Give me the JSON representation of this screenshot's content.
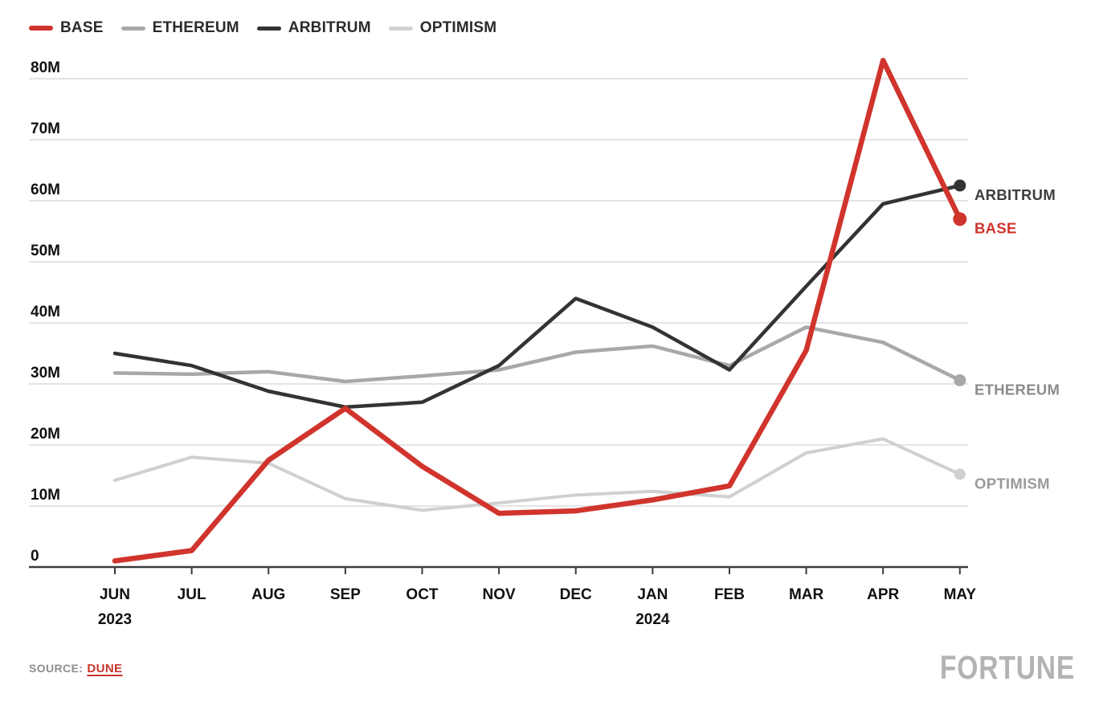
{
  "legend": {
    "items": [
      {
        "label": "BASE",
        "color": "#d0342c"
      },
      {
        "label": "ETHEREUM",
        "color": "#a8a8a8"
      },
      {
        "label": "ARBITRUM",
        "color": "#333333"
      },
      {
        "label": "OPTIMISM",
        "color": "#d2d2d2"
      }
    ]
  },
  "x_axis": {
    "months": [
      {
        "label": "JUN",
        "year": "2023"
      },
      {
        "label": "JUL"
      },
      {
        "label": "AUG"
      },
      {
        "label": "SEP"
      },
      {
        "label": "OCT"
      },
      {
        "label": "NOV"
      },
      {
        "label": "DEC"
      },
      {
        "label": "JAN",
        "year": "2024"
      },
      {
        "label": "FEB"
      },
      {
        "label": "MAR"
      },
      {
        "label": "APR"
      },
      {
        "label": "MAY"
      }
    ]
  },
  "source": {
    "label": "SOURCE:",
    "link": "DUNE"
  },
  "brand": "FORTUNE",
  "chart_data": {
    "type": "line",
    "title": "",
    "unit": "transactions, millions",
    "categories": [
      "Jun 2023",
      "Jul 2023",
      "Aug 2023",
      "Sep 2023",
      "Oct 2023",
      "Nov 2023",
      "Dec 2023",
      "Jan 2024",
      "Feb 2024",
      "Mar 2024",
      "Apr 2024",
      "May 2024"
    ],
    "y_ticks": [
      "80M",
      "70M",
      "60M",
      "50M",
      "40M",
      "30M",
      "20M",
      "10M",
      "0"
    ],
    "ylim_m": [
      0,
      83
    ],
    "grid": true,
    "legend_position": "top-left",
    "series": [
      {
        "name": "OPTIMISM",
        "color": "#d0d0d0",
        "width": 4,
        "z": 1,
        "dot_r": 7,
        "end_label_color": "#9a9a9a",
        "values_m": [
          14.2,
          18,
          17,
          11.2,
          9.3,
          10.5,
          11.8,
          12.4,
          11.5,
          18.7,
          21,
          15.2
        ]
      },
      {
        "name": "ETHEREUM",
        "color": "#a8a8a8",
        "width": 4.5,
        "z": 2,
        "dot_r": 7.5,
        "end_label_color": "#8c8c8c",
        "values_m": [
          31.8,
          31.6,
          32,
          30.4,
          31.3,
          32.3,
          35.2,
          36.2,
          33,
          39.3,
          36.8,
          30.6
        ]
      },
      {
        "name": "ARBITRUM",
        "color": "#333333",
        "width": 4.5,
        "z": 3,
        "dot_r": 7.5,
        "end_label_color": "#3d3d3d",
        "values_m": [
          35,
          33,
          28.8,
          26.2,
          27,
          33,
          44,
          39.3,
          32.3,
          46,
          59.5,
          62.5
        ]
      },
      {
        "name": "BASE",
        "color": "#d0342c",
        "width": 6.5,
        "z": 4,
        "dot_r": 8.5,
        "end_label_color": "#d0342c",
        "values_m": [
          1,
          2.7,
          17.5,
          26,
          16.5,
          8.8,
          9.2,
          11,
          13.3,
          35.5,
          83,
          57
        ]
      }
    ]
  }
}
